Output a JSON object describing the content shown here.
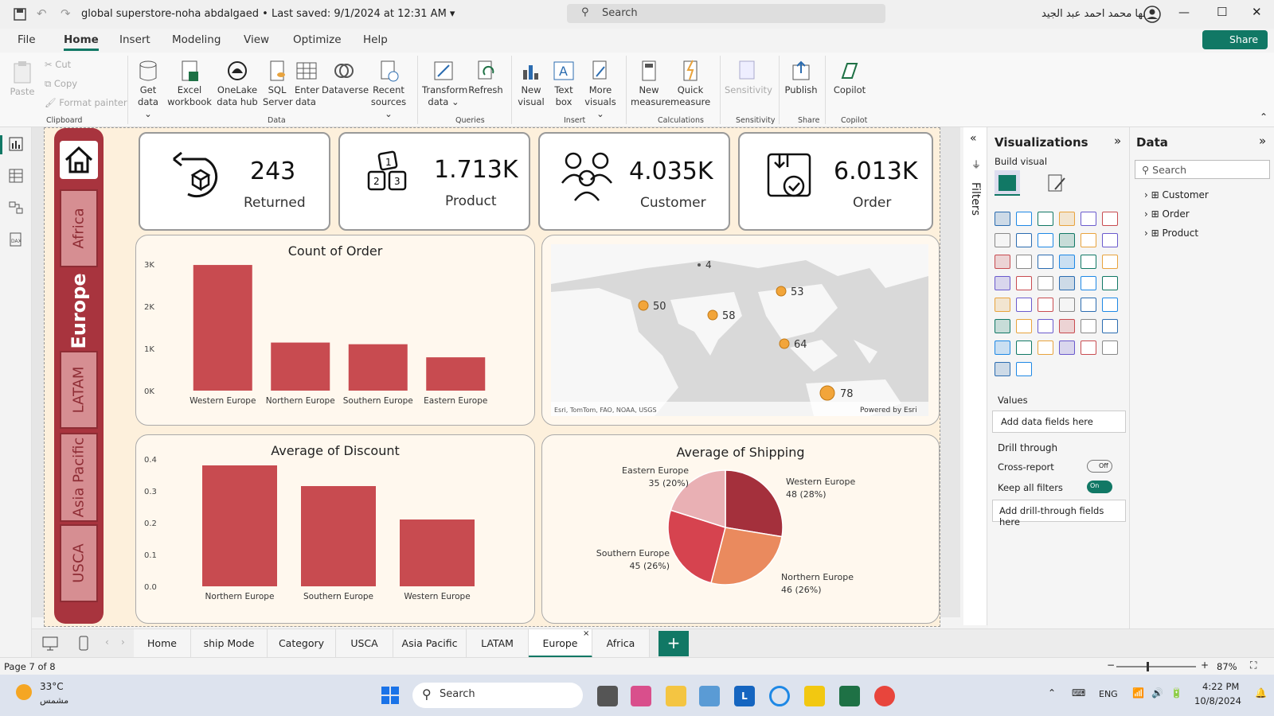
{
  "window": {
    "title": "global superstore-noha abdalgaed",
    "saved": "• Last saved: 9/1/2024 at 12:31 AM",
    "search": "Search",
    "user": "نها محمد احمد عبد الجيد",
    "share": "Share"
  },
  "menu": [
    "File",
    "Home",
    "Insert",
    "Modeling",
    "View",
    "Optimize",
    "Help"
  ],
  "ribbon": {
    "paste": "Paste",
    "cut": "Cut",
    "copy": "Copy",
    "format_painter": "Format painter",
    "get_data": "Get data",
    "excel": "Excel workbook",
    "onelake": "OneLake data hub",
    "sql": "SQL Server",
    "enter": "Enter data",
    "dataverse": "Dataverse",
    "recent": "Recent sources",
    "transform": "Transform data",
    "refresh": "Refresh",
    "new_visual": "New visual",
    "text_box": "Text box",
    "more_visuals": "More visuals",
    "new_measure": "New measure",
    "quick_measure": "Quick measure",
    "sensitivity": "Sensitivity",
    "publish": "Publish",
    "copilot": "Copilot",
    "groups": [
      "Clipboard",
      "Data",
      "Queries",
      "Insert",
      "Calculations",
      "Sensitivity",
      "Share",
      "Copilot"
    ]
  },
  "nav": {
    "items": [
      "Africa",
      "Europe",
      "LATAM",
      "Asia Pacific",
      "USCA"
    ]
  },
  "kpis": [
    {
      "value": "243",
      "label": "Returned"
    },
    {
      "value": "1.713K",
      "label": "Product"
    },
    {
      "value": "4.035K",
      "label": "Customer"
    },
    {
      "value": "6.013K",
      "label": "Order"
    }
  ],
  "map": {
    "points": [
      "4",
      "50",
      "58",
      "53",
      "64",
      "78"
    ],
    "attribution": "Esri, TomTom, FAO, NOAA, USGS",
    "powered": "Powered by Esri"
  },
  "chart_data": [
    {
      "type": "bar",
      "title": "Count of Order",
      "categories": [
        "Western Europe",
        "Northern Europe",
        "Southern Europe",
        "Eastern Europe"
      ],
      "values": [
        2980,
        1140,
        1100,
        790
      ],
      "yticks": [
        "3K",
        "2K",
        "1K",
        "0K"
      ],
      "ylim": [
        0,
        3000
      ]
    },
    {
      "type": "bar",
      "title": "Average of Discount",
      "categories": [
        "Northern Europe",
        "Southern Europe",
        "Western Europe"
      ],
      "values": [
        0.38,
        0.315,
        0.21
      ],
      "yticks": [
        "0.4",
        "0.3",
        "0.2",
        "0.1",
        "0.0"
      ],
      "ylim": [
        0,
        0.4
      ]
    },
    {
      "type": "pie",
      "title": "Average of Shipping",
      "labels": [
        "Western Europe",
        "Northern Europe",
        "Southern Europe",
        "Eastern Europe"
      ],
      "values": [
        48,
        46,
        45,
        35
      ],
      "display": [
        "48 (28%)",
        "46 (26%)",
        "45 (26%)",
        "35 (20%)"
      ],
      "colors": [
        "#a4303c",
        "#ea8a5e",
        "#d6434f",
        "#e9b0b4"
      ]
    }
  ],
  "panes": {
    "filters": "Filters",
    "viz_title": "Visualizations",
    "build": "Build visual",
    "values": "Values",
    "add_fields": "Add data fields here",
    "drill": "Drill through",
    "cross": "Cross-report",
    "cross_state": "Off",
    "keep": "Keep all filters",
    "keep_state": "On",
    "add_drill": "Add drill-through fields here",
    "data_title": "Data",
    "data_search": "Search",
    "tables": [
      "Customer",
      "Order",
      "Product"
    ]
  },
  "tabs": [
    "Home",
    "ship Mode",
    "Category",
    "USCA",
    "Asia Pacific",
    "LATAM",
    "Europe",
    "Africa"
  ],
  "status": {
    "page": "Page 7 of 8",
    "zoom": "87%"
  },
  "taskbar": {
    "temp": "33°C",
    "weather": "مشمس",
    "search": "Search",
    "lang": "ENG",
    "time": "4:22 PM",
    "date": "10/8/2024"
  }
}
